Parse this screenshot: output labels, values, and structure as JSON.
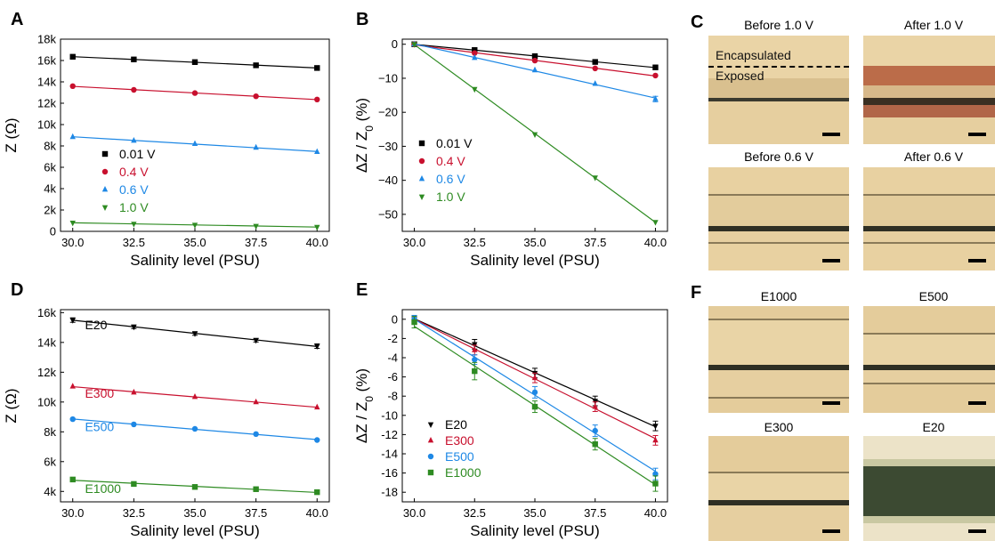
{
  "panels": [
    {
      "id": "A",
      "letter": "A",
      "kind": "abs",
      "chart": {
        "type": "line",
        "xlabel": "Salinity level (PSU)",
        "ylabel": "Z (Ω)",
        "x": [
          30,
          32.5,
          35,
          37.5,
          40
        ],
        "xlim": [
          29.5,
          40.5
        ],
        "ylim": [
          0,
          18000
        ],
        "xticks": [
          "30.0",
          "32.5",
          "35.0",
          "37.5",
          "40.0"
        ],
        "yticks": [
          {
            "v": 0,
            "l": "0"
          },
          {
            "v": 2000,
            "l": "2k"
          },
          {
            "v": 4000,
            "l": "4k"
          },
          {
            "v": 6000,
            "l": "6k"
          },
          {
            "v": 8000,
            "l": "8k"
          },
          {
            "v": 10000,
            "l": "10k"
          },
          {
            "v": 12000,
            "l": "12k"
          },
          {
            "v": 14000,
            "l": "14k"
          },
          {
            "v": 16000,
            "l": "16k"
          },
          {
            "v": 18000,
            "l": "18k"
          }
        ],
        "series": [
          {
            "name": "0.01 V",
            "color": "#000000",
            "marker": "square",
            "values": [
              16350,
              16100,
              15850,
              15550,
              15300
            ],
            "err": [
              0,
              0,
              0,
              0,
              0
            ]
          },
          {
            "name": "0.4 V",
            "color": "#c8102e",
            "marker": "circle",
            "values": [
              13600,
              13250,
              12950,
              12650,
              12350
            ],
            "err": [
              0,
              0,
              0,
              0,
              0
            ]
          },
          {
            "name": "0.6 V",
            "color": "#1e88e5",
            "marker": "triangle-up",
            "values": [
              8850,
              8500,
              8200,
              7850,
              7450
            ],
            "err": [
              0,
              0,
              0,
              0,
              0
            ]
          },
          {
            "name": "1.0 V",
            "color": "#2e8b22",
            "marker": "triangle-down",
            "values": [
              800,
              700,
              600,
              500,
              400
            ],
            "err": [
              0,
              0,
              0,
              0,
              0
            ]
          }
        ]
      }
    },
    {
      "id": "B",
      "letter": "B",
      "kind": "rel",
      "chart": {
        "type": "line",
        "xlabel": "Salinity level (PSU)",
        "ylabel_main": "ΔZ / Z",
        "ylabel_sub": "0",
        "ylabel_end": " (%)",
        "x": [
          30,
          32.5,
          35,
          37.5,
          40
        ],
        "xlim": [
          29.5,
          40.5
        ],
        "ylim": [
          -55,
          1.5
        ],
        "xticks": [
          "30.0",
          "32.5",
          "35.0",
          "37.5",
          "40.0"
        ],
        "yticks": [
          {
            "v": 0,
            "l": "0"
          },
          {
            "v": -10,
            "l": "−10"
          },
          {
            "v": -20,
            "l": "−20"
          },
          {
            "v": -30,
            "l": "−30"
          },
          {
            "v": -40,
            "l": "−40"
          },
          {
            "v": -50,
            "l": "−50"
          }
        ],
        "series": [
          {
            "name": "0.01 V",
            "color": "#000000",
            "marker": "square",
            "values": [
              0,
              -1.7,
              -3.5,
              -5.2,
              -6.8
            ],
            "err": [
              0,
              0,
              0,
              0,
              0
            ]
          },
          {
            "name": "0.4 V",
            "color": "#c8102e",
            "marker": "circle",
            "values": [
              0,
              -2.6,
              -4.8,
              -7.1,
              -9.2
            ],
            "err": [
              0,
              0,
              0,
              0,
              0
            ]
          },
          {
            "name": "0.6 V",
            "color": "#1e88e5",
            "marker": "triangle-up",
            "values": [
              0,
              -4.0,
              -7.6,
              -11.6,
              -16.1
            ],
            "err": [
              0,
              0,
              0,
              0,
              0.8
            ]
          },
          {
            "name": "1.0 V",
            "color": "#2e8b22",
            "marker": "triangle-down",
            "values": [
              0,
              -13.2,
              -26.5,
              -39.2,
              -52.3
            ],
            "err": [
              0,
              0,
              0,
              0,
              0
            ]
          }
        ]
      }
    },
    {
      "id": "D",
      "letter": "D",
      "kind": "abs",
      "chart": {
        "type": "line",
        "xlabel": "Salinity level (PSU)",
        "ylabel": "Z (Ω)",
        "x": [
          30,
          32.5,
          35,
          37.5,
          40
        ],
        "xlim": [
          29.5,
          40.5
        ],
        "ylim": [
          3300,
          16200
        ],
        "xticks": [
          "30.0",
          "32.5",
          "35.0",
          "37.5",
          "40.0"
        ],
        "yticks": [
          {
            "v": 4000,
            "l": "4k"
          },
          {
            "v": 6000,
            "l": "6k"
          },
          {
            "v": 8000,
            "l": "8k"
          },
          {
            "v": 10000,
            "l": "10k"
          },
          {
            "v": 12000,
            "l": "12k"
          },
          {
            "v": 14000,
            "l": "14k"
          },
          {
            "v": 16000,
            "l": "16k"
          }
        ],
        "series": [
          {
            "name": "E20",
            "color": "#000000",
            "marker": "triangle-down",
            "values": [
              15500,
              15050,
              14600,
              14150,
              13750
            ],
            "err": [
              150,
              120,
              120,
              120,
              150
            ]
          },
          {
            "name": "E300",
            "color": "#c8102e",
            "marker": "triangle-up",
            "values": [
              11050,
              10650,
              10350,
              10000,
              9650
            ],
            "err": [
              0,
              0,
              0,
              0,
              0
            ]
          },
          {
            "name": "E500",
            "color": "#1e88e5",
            "marker": "circle",
            "values": [
              8850,
              8500,
              8200,
              7850,
              7450
            ],
            "err": [
              0,
              0,
              0,
              0,
              0
            ]
          },
          {
            "name": "E1000",
            "color": "#2e8b22",
            "marker": "square",
            "values": [
              4800,
              4500,
              4300,
              4150,
              3950
            ],
            "err": [
              0,
              0,
              0,
              0,
              0
            ]
          }
        ],
        "inline_labels": [
          {
            "series": 0,
            "x": 30.5,
            "y": 14900
          },
          {
            "series": 1,
            "x": 30.5,
            "y": 10300
          },
          {
            "series": 2,
            "x": 30.5,
            "y": 8050
          },
          {
            "series": 3,
            "x": 30.5,
            "y": 3900
          }
        ]
      }
    },
    {
      "id": "E",
      "letter": "E",
      "kind": "rel",
      "chart": {
        "type": "line",
        "xlabel": "Salinity level (PSU)",
        "ylabel_main": "ΔZ / Z",
        "ylabel_sub": "0",
        "ylabel_end": " (%)",
        "x": [
          30,
          32.5,
          35,
          37.5,
          40
        ],
        "xlim": [
          29.5,
          40.5
        ],
        "ylim": [
          -19,
          1
        ],
        "xticks": [
          "30.0",
          "32.5",
          "35.0",
          "37.5",
          "40.0"
        ],
        "yticks": [
          {
            "v": 0,
            "l": "0"
          },
          {
            "v": -2,
            "l": "-2"
          },
          {
            "v": -4,
            "l": "-4"
          },
          {
            "v": -6,
            "l": "-6"
          },
          {
            "v": -8,
            "l": "-8"
          },
          {
            "v": -10,
            "l": "-10"
          },
          {
            "v": -12,
            "l": "-12"
          },
          {
            "v": -14,
            "l": "-14"
          },
          {
            "v": -16,
            "l": "-16"
          },
          {
            "v": -18,
            "l": "-18"
          }
        ],
        "series": [
          {
            "name": "E20",
            "color": "#000000",
            "marker": "triangle-down",
            "values": [
              0,
              -2.6,
              -5.6,
              -8.5,
              -11.1
            ],
            "err": [
              0.4,
              0.5,
              0.5,
              0.5,
              0.5
            ]
          },
          {
            "name": "E300",
            "color": "#c8102e",
            "marker": "triangle-up",
            "values": [
              0,
              -3.2,
              -6.1,
              -9.1,
              -12.6
            ],
            "err": [
              0.3,
              0.5,
              0.5,
              0.5,
              0.5
            ]
          },
          {
            "name": "E500",
            "color": "#1e88e5",
            "marker": "circle",
            "values": [
              0,
              -4.2,
              -7.6,
              -11.6,
              -16.1
            ],
            "err": [
              0.4,
              0.5,
              0.6,
              0.6,
              0.6
            ]
          },
          {
            "name": "E1000",
            "color": "#2e8b22",
            "marker": "square",
            "values": [
              -0.3,
              -5.4,
              -9.1,
              -13.0,
              -17.1
            ],
            "err": [
              0.6,
              0.9,
              0.6,
              0.6,
              0.8
            ]
          }
        ]
      }
    }
  ],
  "photo_panels": [
    {
      "letter": "C",
      "images": [
        {
          "title": "Before 1.0 V",
          "style": "plain",
          "overlay": [
            "Encapsulated",
            "Exposed"
          ]
        },
        {
          "title": "After 1.0 V",
          "style": "corroded",
          "overlay": []
        },
        {
          "title": "Before 0.6 V",
          "style": "plain",
          "overlay": []
        },
        {
          "title": "After 0.6 V",
          "style": "plain",
          "overlay": []
        }
      ]
    },
    {
      "letter": "F",
      "images": [
        {
          "title": "E1000",
          "style": "plain",
          "overlay": []
        },
        {
          "title": "E500",
          "style": "plain",
          "overlay": []
        },
        {
          "title": "E300",
          "style": "plain",
          "overlay": []
        },
        {
          "title": "E20",
          "style": "dark",
          "overlay": []
        }
      ]
    }
  ],
  "colors": {
    "black": "#000000",
    "red": "#c8102e",
    "blue": "#1e88e5",
    "green": "#2e8b22"
  }
}
